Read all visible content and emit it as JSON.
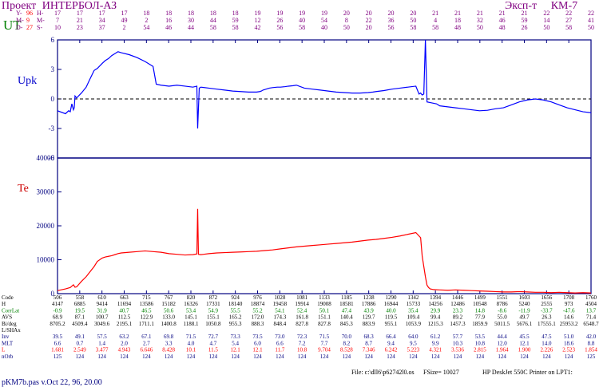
{
  "header": {
    "project_label": "Проект",
    "project_name": "ИНТЕРБОЛ-АЗ",
    "experiment_label": "Эксп-т",
    "experiment_name": "КМ-7",
    "ut_label": "UT",
    "date_rows": [
      {
        "prefix": "Y-",
        "value": "96",
        "unit": "H-"
      },
      {
        "prefix": "M-",
        "value": "9",
        "unit": "M-"
      },
      {
        "prefix": "D-",
        "value": "27",
        "unit": "S-"
      }
    ],
    "time_columns": [
      [
        "17",
        "7",
        "10"
      ],
      [
        "17",
        "21",
        "23"
      ],
      [
        "17",
        "34",
        "37"
      ],
      [
        "17",
        "49",
        "2"
      ],
      [
        "18",
        "2",
        "54"
      ],
      [
        "18",
        "16",
        "46"
      ],
      [
        "18",
        "30",
        "44"
      ],
      [
        "18",
        "44",
        "58"
      ],
      [
        "18",
        "59",
        "58"
      ],
      [
        "19",
        "12",
        "42"
      ],
      [
        "19",
        "26",
        "56"
      ],
      [
        "19",
        "40",
        "58"
      ],
      [
        "19",
        "54",
        "40"
      ],
      [
        "20",
        "8",
        "50"
      ],
      [
        "20",
        "22",
        "20"
      ],
      [
        "20",
        "36",
        "56"
      ],
      [
        "20",
        "50",
        "58"
      ],
      [
        "21",
        "4",
        "58"
      ],
      [
        "21",
        "18",
        "48"
      ],
      [
        "21",
        "32",
        "50"
      ],
      [
        "21",
        "46",
        "48"
      ],
      [
        "21",
        "59",
        "26"
      ],
      [
        "22",
        "14",
        "50"
      ],
      [
        "22",
        "27",
        "58"
      ],
      [
        "22",
        "41",
        "50"
      ]
    ]
  },
  "footer": {
    "program": "pKM7b.pas v.Oct 22, 96, 20.00",
    "file": "File: c:\\dll6\\p62742l0.os",
    "fsize": "FSize= 10027",
    "printer": "HP DeskJet 550C Printer on LPT1:"
  },
  "colors": {
    "upk": "#0000ff",
    "te": "#ff0000",
    "axis": "#000080",
    "header": "#800080",
    "ut": "#008000"
  },
  "chart_data": [
    {
      "type": "line",
      "ylabel": "Upk",
      "ylim": [
        -6,
        6
      ],
      "yticks": [
        "6",
        "3",
        "0",
        "-3",
        "-6"
      ],
      "zero_line": "dashed",
      "x": [
        0,
        10,
        14,
        16,
        18,
        20,
        21,
        22,
        23,
        24,
        30,
        36,
        40,
        46,
        50,
        56,
        60,
        62,
        64,
        68,
        72,
        76,
        80,
        90,
        100,
        110,
        120,
        124,
        130,
        140,
        150,
        160,
        170,
        175,
        176,
        178,
        180,
        190,
        200,
        210,
        220,
        230,
        240,
        250,
        254,
        256,
        258,
        260,
        262,
        264,
        266,
        270,
        276,
        280,
        286,
        290,
        296,
        300,
        310,
        320,
        330,
        340,
        350,
        360,
        370,
        380,
        390,
        396,
        400,
        410,
        420,
        430,
        440,
        450,
        454,
        456,
        458,
        460,
        462,
        464,
        470,
        476,
        480,
        490,
        500,
        510,
        520,
        530,
        540,
        550,
        560,
        570,
        580,
        590,
        600,
        610,
        620,
        630,
        640,
        650,
        660,
        670
      ],
      "values": [
        -1.2,
        -1.5,
        -1.2,
        -1.3,
        -0.5,
        -1.1,
        -0.9,
        0.3,
        0.2,
        0.1,
        0.6,
        1.2,
        1.9,
        2.9,
        3.1,
        3.6,
        3.9,
        4.0,
        4.1,
        4.4,
        4.6,
        4.8,
        4.7,
        4.5,
        4.2,
        3.8,
        3.3,
        1.5,
        1.4,
        1.3,
        1.4,
        1.3,
        1.2,
        1.3,
        -3.0,
        1.1,
        1.2,
        1.1,
        1.0,
        0.9,
        0.8,
        0.75,
        0.7,
        0.7,
        0.75,
        0.8,
        0.9,
        0.95,
        1.0,
        1.05,
        1.1,
        1.15,
        1.2,
        1.2,
        1.25,
        1.3,
        1.35,
        1.4,
        1.1,
        1.0,
        0.9,
        0.8,
        0.7,
        0.65,
        0.6,
        0.6,
        0.65,
        0.7,
        0.75,
        0.85,
        1.0,
        1.1,
        1.2,
        1.3,
        0.5,
        0.6,
        0.4,
        0.5,
        6.0,
        -0.3,
        -0.4,
        -0.5,
        -0.7,
        -0.8,
        -0.9,
        -1.0,
        -1.1,
        -1.2,
        -1.15,
        -1.0,
        -0.9,
        -0.6,
        -0.3,
        -0.1,
        0.0,
        -0.1,
        -0.3,
        -0.6,
        -0.9,
        -1.1,
        -1.3,
        -1.4
      ]
    },
    {
      "type": "line",
      "ylabel": "Te",
      "ylim": [
        0,
        40000
      ],
      "yticks": [
        "40000",
        "30000",
        "20000",
        "10000",
        "0"
      ],
      "x": [
        0,
        10,
        16,
        20,
        22,
        24,
        30,
        36,
        40,
        46,
        50,
        56,
        60,
        64,
        68,
        72,
        76,
        80,
        90,
        100,
        110,
        120,
        130,
        140,
        150,
        160,
        170,
        175,
        176,
        177,
        180,
        190,
        200,
        210,
        220,
        230,
        240,
        250,
        260,
        270,
        280,
        290,
        300,
        310,
        320,
        330,
        340,
        350,
        360,
        370,
        380,
        390,
        400,
        410,
        420,
        430,
        440,
        450,
        456,
        458,
        460,
        462,
        464,
        466,
        468,
        470,
        472,
        480,
        490,
        500,
        510,
        520,
        530,
        540,
        550,
        560,
        570,
        580,
        590,
        600,
        610,
        620,
        630,
        640,
        650,
        660,
        670
      ],
      "values": [
        900,
        1400,
        1800,
        2600,
        1900,
        2000,
        3600,
        5000,
        6200,
        8000,
        9500,
        10500,
        10800,
        11000,
        11200,
        11500,
        11800,
        12000,
        12200,
        12400,
        12600,
        12400,
        12200,
        11800,
        11600,
        11400,
        11500,
        11700,
        25000,
        11600,
        11500,
        11800,
        12000,
        12100,
        12200,
        12300,
        12400,
        12500,
        12700,
        12900,
        13200,
        13500,
        13800,
        14000,
        14200,
        14400,
        14600,
        14800,
        15000,
        15200,
        15500,
        15800,
        16000,
        16300,
        16600,
        17000,
        17500,
        18000,
        16500,
        11000,
        8000,
        5000,
        2500,
        1800,
        1400,
        1300,
        1200,
        1100,
        1000,
        1100,
        1000,
        900,
        800,
        700,
        600,
        500,
        500,
        600,
        500,
        400,
        400,
        300,
        400,
        300,
        200,
        300,
        200
      ]
    }
  ],
  "table": {
    "rows": [
      {
        "label": "Code",
        "values": [
          "506",
          "558",
          "610",
          "663",
          "715",
          "767",
          "820",
          "872",
          "924",
          "976",
          "1028",
          "1081",
          "1133",
          "1185",
          "1238",
          "1290",
          "1342",
          "1394",
          "1446",
          "1499",
          "1551",
          "1603",
          "1656",
          "1708",
          "1760"
        ]
      },
      {
        "label": "H",
        "values": [
          "4147",
          "6885",
          "9414",
          "11694",
          "13586",
          "15182",
          "16326",
          "17331",
          "18140",
          "18874",
          "19458",
          "19914",
          "19008",
          "18581",
          "17886",
          "16944",
          "15733",
          "14256",
          "12486",
          "10548",
          "8786",
          "5240",
          "2555",
          "973",
          "4504"
        ]
      },
      {
        "label": "CorrLat",
        "values": [
          "-0.9",
          "19.5",
          "31.9",
          "40.7",
          "46.5",
          "50.6",
          "53.4",
          "54.9",
          "55.5",
          "55.2",
          "54.1",
          "52.4",
          "50.1",
          "47.4",
          "43.9",
          "40.0",
          "35.4",
          "29.9",
          "23.3",
          "14.8",
          "-8.6",
          "-11.9",
          "-33.7",
          "-47.6",
          "13.7"
        ]
      },
      {
        "label": "AVS",
        "values": [
          "68.9",
          "87.1",
          "100.7",
          "112.5",
          "122.9",
          "133.0",
          "145.1",
          "155.1",
          "165.2",
          "172.0",
          "174.3",
          "161.8",
          "151.1",
          "140.4",
          "129.7",
          "119.5",
          "109.4",
          "99.4",
          "89.2",
          "77.9",
          "55.0",
          "49.7",
          "26.3",
          "14.6",
          "71.4"
        ]
      },
      {
        "label": "Bi/deg",
        "values": [
          "8705.2",
          "4509.4",
          "3049.6",
          "2195.1",
          "1711.1",
          "1400.8",
          "1188.1",
          "1050.8",
          "955.3",
          "888.3",
          "848.4",
          "827.8",
          "827.8",
          "845.3",
          "883.9",
          "955.1",
          "1053.9",
          "1215.3",
          "1457.3",
          "1859.9",
          "5011.5",
          "5676.1",
          "17555.1",
          "25953.2",
          "6548.7"
        ]
      },
      {
        "label": "L/SHAx",
        "values": [
          "",
          "",
          "",
          "",
          "",
          "",
          "",
          "",
          "",
          "",
          "",
          "",
          "",
          "",
          "",
          "",
          "",
          "",
          "",
          "",
          "",
          "",
          "",
          "",
          ""
        ]
      },
      {
        "label": "Inv",
        "values": [
          "39.5",
          "49.1",
          "57.5",
          "63.2",
          "67.1",
          "69.8",
          "71.5",
          "72.7",
          "73.3",
          "73.5",
          "73.0",
          "72.3",
          "71.5",
          "70.0",
          "68.3",
          "66.4",
          "64.0",
          "61.2",
          "57.7",
          "53.5",
          "44.4",
          "45.5",
          "47.5",
          "51.0",
          "42.0"
        ]
      },
      {
        "label": "MLT",
        "values": [
          "6.6",
          "0.7",
          "1.4",
          "2.0",
          "2.7",
          "3.3",
          "4.0",
          "4.7",
          "5.4",
          "6.0",
          "6.6",
          "7.2",
          "7.7",
          "8.2",
          "8.7",
          "9.4",
          "9.5",
          "9.9",
          "10.3",
          "10.8",
          "12.0",
          "12.1",
          "14.0",
          "18.6",
          "8.8"
        ]
      },
      {
        "label": "L",
        "values": [
          "1.681",
          "2.549",
          "3.477",
          "4.943",
          "6.646",
          "8.428",
          "10.1",
          "11.5",
          "12.1",
          "12.1",
          "11.7",
          "10.8",
          "9.704",
          "8.528",
          "7.346",
          "6.242",
          "5.223",
          "4.321",
          "3.536",
          "2.815",
          "1.964",
          "1.900",
          "2.226",
          "2.523",
          "1.854"
        ]
      },
      {
        "label": "nOrb",
        "values": [
          "125",
          "124",
          "124",
          "124",
          "124",
          "124",
          "124",
          "124",
          "124",
          "124",
          "124",
          "124",
          "124",
          "124",
          "124",
          "124",
          "124",
          "124",
          "124",
          "124",
          "124",
          "124",
          "124",
          "124",
          "125"
        ]
      }
    ]
  }
}
